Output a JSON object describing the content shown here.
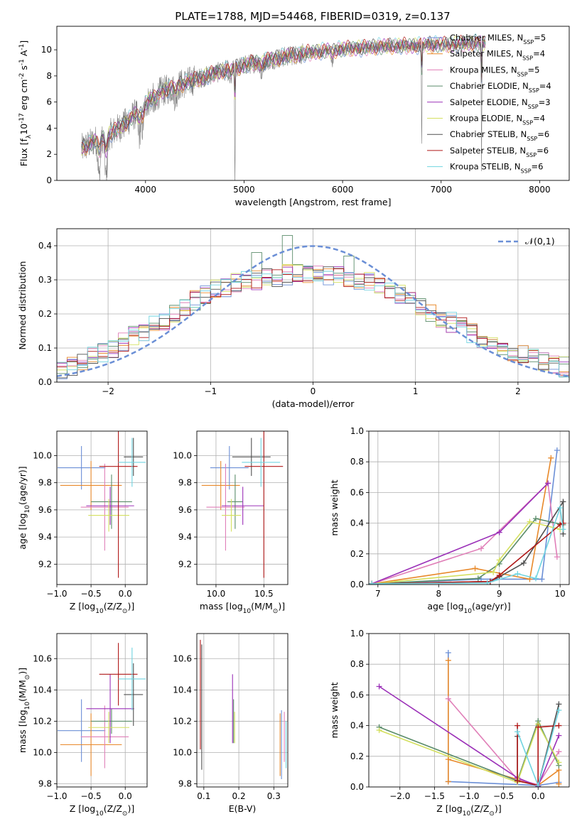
{
  "figure": {
    "title": "PLATE=1788, MJD=54468, FIBERID=0319, z=0.137"
  },
  "colors": {
    "gray": "#808080",
    "axes": "#000000",
    "grid": "#b0b0b0",
    "normal_curve": "#6b8fd6",
    "series": [
      "#6b8fd6",
      "#e8892a",
      "#e07fb8",
      "#5a8c6a",
      "#9b30b8",
      "#d4e060",
      "#505050",
      "#b01818",
      "#70d4e0"
    ]
  },
  "chart_data": [
    {
      "id": "spectrum",
      "type": "line",
      "title": "PLATE=1788, MJD=54468, FIBERID=0319, z=0.137",
      "xlabel": "wavelength [Angstrom, rest frame]",
      "ylabel": "Flux [f$_\\lambda$10$^{-17}$ erg cm$^{-2}$ s$^{-1}$ A$^{-1}$]",
      "xlim": [
        3100,
        8300
      ],
      "ylim": [
        0,
        11.8
      ],
      "xticks": [
        4000,
        5000,
        6000,
        7000,
        8000
      ],
      "yticks": [
        0,
        2,
        4,
        6,
        8,
        10
      ],
      "grid": false,
      "legend_position": "top-right",
      "data_range": [
        3350,
        7450
      ],
      "continuum": {
        "x": [
          3350,
          3500,
          3650,
          3800,
          3950,
          4100,
          4300,
          4500,
          4700,
          4900,
          5100,
          5300,
          5500,
          5700,
          5900,
          6100,
          6300,
          6500,
          6700,
          6900,
          7100,
          7300,
          7450
        ],
        "y": [
          2.4,
          3.1,
          3.6,
          4.4,
          5.5,
          6.6,
          7.2,
          7.7,
          8.2,
          8.6,
          9.0,
          9.3,
          9.6,
          9.8,
          10.0,
          10.1,
          10.2,
          10.3,
          10.3,
          10.4,
          10.4,
          10.5,
          10.5
        ]
      },
      "absorption_lines": [
        {
          "x": 3530,
          "depth": 3.0
        },
        {
          "x": 3600,
          "depth": 3.2
        },
        {
          "x": 3935,
          "depth": 2.0
        },
        {
          "x": 3970,
          "depth": 1.6
        },
        {
          "x": 4102,
          "depth": 1.2
        },
        {
          "x": 4305,
          "depth": 1.0
        },
        {
          "x": 4862,
          "depth": 0.8
        },
        {
          "x": 4907,
          "depth": 9.0
        },
        {
          "x": 5175,
          "depth": 1.0
        },
        {
          "x": 5895,
          "depth": 0.9
        },
        {
          "x": 6803,
          "depth": 8.0
        },
        {
          "x": 7410,
          "depth": 9.5
        }
      ],
      "series": [
        {
          "name": "Chabrier MILES, N$_{SSP}$=5"
        },
        {
          "name": "Salpeter MILES, N$_{SSP}$=4"
        },
        {
          "name": "Kroupa MILES, N$_{SSP}$=5"
        },
        {
          "name": "Chabrier ELODIE, N$_{SSP}$=4"
        },
        {
          "name": "Salpeter ELODIE, N$_{SSP}$=3"
        },
        {
          "name": "Kroupa ELODIE, N$_{SSP}$=4"
        },
        {
          "name": "Chabrier STELIB, N$_{SSP}$=6"
        },
        {
          "name": "Salpeter STELIB, N$_{SSP}$=6"
        },
        {
          "name": "Kroupa STELIB, N$_{SSP}$=6"
        }
      ]
    },
    {
      "id": "residuals",
      "type": "bar",
      "xlabel": "(data-model)/error",
      "ylabel": "Normed distribution",
      "xlim": [
        -2.5,
        2.5
      ],
      "ylim": [
        0,
        0.45
      ],
      "xticks": [
        -2,
        -1,
        0,
        1,
        2
      ],
      "yticks": [
        0.0,
        0.1,
        0.2,
        0.3,
        0.4
      ],
      "grid": true,
      "bin_width": 0.1,
      "legend_position": "top-right",
      "legend": [
        {
          "name": "$\\mathcal{N}(0,1)$",
          "style": "dashed"
        }
      ],
      "bin_centers": [
        -2.45,
        -2.35,
        -2.25,
        -2.15,
        -2.05,
        -1.95,
        -1.85,
        -1.75,
        -1.65,
        -1.55,
        -1.45,
        -1.35,
        -1.25,
        -1.15,
        -1.05,
        -0.95,
        -0.85,
        -0.75,
        -0.65,
        -0.55,
        -0.45,
        -0.35,
        -0.25,
        -0.15,
        -0.05,
        0.05,
        0.15,
        0.25,
        0.35,
        0.45,
        0.55,
        0.65,
        0.75,
        0.85,
        0.95,
        1.05,
        1.15,
        1.25,
        1.35,
        1.45,
        1.55,
        1.65,
        1.75,
        1.85,
        1.95,
        2.05,
        2.15,
        2.25,
        2.35,
        2.45
      ],
      "envelope": [
        0.037,
        0.045,
        0.06,
        0.075,
        0.085,
        0.1,
        0.115,
        0.135,
        0.15,
        0.165,
        0.18,
        0.2,
        0.22,
        0.24,
        0.255,
        0.27,
        0.28,
        0.29,
        0.295,
        0.3,
        0.305,
        0.31,
        0.315,
        0.32,
        0.32,
        0.32,
        0.315,
        0.31,
        0.305,
        0.3,
        0.295,
        0.29,
        0.275,
        0.26,
        0.24,
        0.225,
        0.205,
        0.19,
        0.175,
        0.16,
        0.145,
        0.13,
        0.115,
        0.1,
        0.09,
        0.08,
        0.07,
        0.06,
        0.05,
        0.045
      ],
      "spread": 0.03,
      "spikes": [
        {
          "x": -0.25,
          "y": 0.43
        },
        {
          "x": 0.35,
          "y": 0.37
        },
        {
          "x": -0.55,
          "y": 0.38
        }
      ]
    },
    {
      "id": "age_vs_Z",
      "type": "scatter",
      "xlabel": "Z [log$_{10}$(Z/Z$_\\odot$)]",
      "ylabel": "age  [log$_{10}$(age/yr)]",
      "xlim": [
        -1.0,
        0.32
      ],
      "ylim": [
        9.05,
        10.18
      ],
      "xticks": [
        -1.0,
        -0.5,
        0.0
      ],
      "yticks": [
        9.2,
        9.4,
        9.6,
        9.8,
        10.0
      ],
      "grid": true,
      "points": [
        {
          "x": -0.64,
          "y": 9.91,
          "xerr": 0.35,
          "yerr": 0.16
        },
        {
          "x": -0.5,
          "y": 9.78,
          "xerr": 0.45,
          "yerr": 0.18
        },
        {
          "x": -0.3,
          "y": 9.62,
          "xerr": 0.35,
          "yerr": 0.32
        },
        {
          "x": -0.2,
          "y": 9.66,
          "xerr": 0.3,
          "yerr": 0.2
        },
        {
          "x": -0.22,
          "y": 9.63,
          "xerr": 0.35,
          "yerr": 0.14
        },
        {
          "x": -0.24,
          "y": 9.56,
          "xerr": 0.3,
          "yerr": 0.12
        },
        {
          "x": 0.12,
          "y": 9.99,
          "xerr": 0.14,
          "yerr": 0.14
        },
        {
          "x": -0.1,
          "y": 9.92,
          "xerr": 0.28,
          "yerr": 0.82
        },
        {
          "x": 0.1,
          "y": 9.95,
          "xerr": 0.2,
          "yerr": 0.18
        }
      ]
    },
    {
      "id": "age_vs_mass",
      "type": "scatter",
      "xlabel": "mass [log$_{10}$(M/M$_\\odot$)]",
      "ylabel": "",
      "xlim": [
        9.8,
        10.75
      ],
      "ylim": [
        9.05,
        10.18
      ],
      "xticks": [
        10.0,
        10.5
      ],
      "yticks": [
        9.2,
        9.4,
        9.6,
        9.8,
        10.0
      ],
      "grid": true,
      "points": [
        {
          "x": 10.14,
          "y": 9.91,
          "xerr": 0.2,
          "yerr": 0.16
        },
        {
          "x": 10.05,
          "y": 9.78,
          "xerr": 0.2,
          "yerr": 0.18
        },
        {
          "x": 10.1,
          "y": 9.62,
          "xerr": 0.2,
          "yerr": 0.32
        },
        {
          "x": 10.2,
          "y": 9.66,
          "xerr": 0.08,
          "yerr": 0.2
        },
        {
          "x": 10.28,
          "y": 9.63,
          "xerr": 0.22,
          "yerr": 0.14
        },
        {
          "x": 10.16,
          "y": 9.56,
          "xerr": 0.1,
          "yerr": 0.12
        },
        {
          "x": 10.37,
          "y": 9.99,
          "xerr": 0.2,
          "yerr": 0.14
        },
        {
          "x": 10.5,
          "y": 9.92,
          "xerr": 0.2,
          "yerr": 0.82
        },
        {
          "x": 10.47,
          "y": 9.95,
          "xerr": 0.2,
          "yerr": 0.18
        }
      ]
    },
    {
      "id": "weight_vs_age",
      "type": "line",
      "xlabel": "age  [log$_{10}$(age/yr)]",
      "ylabel": "mass weight",
      "xlim": [
        6.85,
        10.15
      ],
      "ylim": [
        0,
        1.0
      ],
      "xticks": [
        7,
        8,
        9,
        10
      ],
      "yticks": [
        0.0,
        0.2,
        0.4,
        0.6,
        0.8,
        1.0
      ],
      "grid": true,
      "series": [
        {
          "x": [
            6.9,
            8.7,
            9.7,
            9.95
          ],
          "y": [
            0.005,
            0.035,
            0.035,
            0.875
          ]
        },
        {
          "x": [
            6.9,
            8.6,
            9.5,
            9.85
          ],
          "y": [
            0.005,
            0.105,
            0.035,
            0.825
          ]
        },
        {
          "x": [
            6.9,
            8.7,
            9.8,
            9.95
          ],
          "y": [
            0.005,
            0.235,
            0.66,
            0.18
          ]
        },
        {
          "x": [
            6.9,
            8.65,
            9.0,
            9.6,
            10.05
          ],
          "y": [
            0.005,
            0.04,
            0.135,
            0.43,
            0.39
          ]
        },
        {
          "x": [
            6.9,
            9.0,
            9.8
          ],
          "y": [
            0.005,
            0.34,
            0.66
          ]
        },
        {
          "x": [
            6.9,
            8.9,
            9.0,
            9.5,
            10.0
          ],
          "y": [
            0.005,
            0.08,
            0.16,
            0.41,
            0.36
          ]
        },
        {
          "x": [
            6.9,
            8.85,
            9.0,
            9.4,
            10.05,
            10.05
          ],
          "y": [
            0.005,
            0.02,
            0.05,
            0.14,
            0.54,
            0.33
          ]
        },
        {
          "x": [
            6.9,
            8.85,
            9.0,
            10.0,
            10.05
          ],
          "y": [
            0.005,
            0.02,
            0.06,
            0.39,
            0.4
          ]
        },
        {
          "x": [
            6.9,
            8.8,
            9.3,
            9.6,
            10.0,
            10.05
          ],
          "y": [
            0.005,
            0.01,
            0.07,
            0.04,
            0.5,
            0.36
          ]
        }
      ]
    },
    {
      "id": "mass_vs_Z",
      "type": "scatter",
      "xlabel": "Z [log$_{10}$(Z/Z$_\\odot$)]",
      "ylabel": "mass [log$_{10}$(M/M$_\\odot$)]",
      "xlim": [
        -1.0,
        0.32
      ],
      "ylim": [
        9.78,
        10.76
      ],
      "xticks": [
        -1.0,
        -0.5,
        0.0
      ],
      "yticks": [
        9.8,
        10.0,
        10.2,
        10.4,
        10.6
      ],
      "grid": true,
      "points": [
        {
          "x": -0.64,
          "y": 10.14,
          "xerr": 0.35,
          "yerr": 0.2
        },
        {
          "x": -0.5,
          "y": 10.05,
          "xerr": 0.45,
          "yerr": 0.2
        },
        {
          "x": -0.3,
          "y": 10.1,
          "xerr": 0.35,
          "yerr": 0.2
        },
        {
          "x": -0.2,
          "y": 10.2,
          "xerr": 0.3,
          "yerr": 0.08
        },
        {
          "x": -0.22,
          "y": 10.28,
          "xerr": 0.35,
          "yerr": 0.22
        },
        {
          "x": -0.24,
          "y": 10.16,
          "xerr": 0.3,
          "yerr": 0.1
        },
        {
          "x": 0.12,
          "y": 10.37,
          "xerr": 0.14,
          "yerr": 0.2
        },
        {
          "x": -0.1,
          "y": 10.5,
          "xerr": 0.28,
          "yerr": 0.2
        },
        {
          "x": 0.1,
          "y": 10.47,
          "xerr": 0.2,
          "yerr": 0.2
        }
      ]
    },
    {
      "id": "mass_vs_EBV",
      "type": "scatter",
      "xlabel": "E(B-V)",
      "ylabel": "",
      "xlim": [
        0.08,
        0.34
      ],
      "ylim": [
        9.78,
        10.76
      ],
      "xticks": [
        0.1,
        0.2,
        0.3
      ],
      "yticks": [
        9.8,
        10.0,
        10.2,
        10.4,
        10.6
      ],
      "grid": true,
      "points": [
        {
          "x": 0.322,
          "y": 10.05,
          "yerr": 0.22
        },
        {
          "x": 0.318,
          "y": 10.05,
          "yerr": 0.2
        },
        {
          "x": 0.33,
          "y": 10.1,
          "yerr": 0.16
        },
        {
          "x": 0.185,
          "y": 10.2,
          "yerr": 0.14
        },
        {
          "x": 0.182,
          "y": 10.28,
          "yerr": 0.22
        },
        {
          "x": 0.188,
          "y": 10.16,
          "yerr": 0.1
        },
        {
          "x": 0.094,
          "y": 10.29,
          "yerr": 0.4
        },
        {
          "x": 0.09,
          "y": 10.37,
          "yerr": 0.35
        },
        {
          "x": 0.335,
          "y": 10.05,
          "yerr": 0.15
        }
      ]
    },
    {
      "id": "weight_vs_Z",
      "type": "line",
      "xlabel": "Z [log$_{10}$(Z/Z$_\\odot$)]",
      "ylabel": "mass weight",
      "xlim": [
        -2.45,
        0.45
      ],
      "ylim": [
        0,
        1.0
      ],
      "xticks": [
        -2.0,
        -1.5,
        -1.0,
        -0.5,
        0.0
      ],
      "yticks": [
        0.0,
        0.2,
        0.4,
        0.6,
        0.8,
        1.0
      ],
      "grid": true,
      "series": [
        {
          "x": [
            -1.3,
            -1.3,
            0.0,
            0.3
          ],
          "y": [
            0.875,
            0.035,
            0.01,
            0.03
          ]
        },
        {
          "x": [
            -1.3,
            -1.3,
            -1.3,
            0.0,
            0.3,
            0.3
          ],
          "y": [
            0.825,
            0.035,
            0.18,
            0.01,
            0.11,
            0.02
          ]
        },
        {
          "x": [
            -1.3,
            -0.3,
            0.0,
            0.3
          ],
          "y": [
            0.575,
            0.05,
            0.015,
            0.23
          ]
        },
        {
          "x": [
            -2.3,
            -0.3,
            0.0,
            0.3
          ],
          "y": [
            0.39,
            0.04,
            0.43,
            0.14
          ]
        },
        {
          "x": [
            -2.3,
            -0.3,
            0.0,
            0.3
          ],
          "y": [
            0.655,
            0.06,
            0.005,
            0.335
          ]
        },
        {
          "x": [
            -2.3,
            -0.3,
            0.0,
            0.3
          ],
          "y": [
            0.37,
            0.03,
            0.41,
            0.16
          ]
        },
        {
          "x": [
            -0.3,
            -0.3,
            0.0,
            0.3
          ],
          "y": [
            0.33,
            0.04,
            0.01,
            0.54
          ]
        },
        {
          "x": [
            -0.3,
            -0.3,
            0.0,
            0.0,
            0.3
          ],
          "y": [
            0.4,
            0.04,
            0.01,
            0.39,
            0.4
          ]
        },
        {
          "x": [
            -0.3,
            0.0,
            0.3
          ],
          "y": [
            0.36,
            0.01,
            0.5
          ]
        }
      ]
    }
  ]
}
